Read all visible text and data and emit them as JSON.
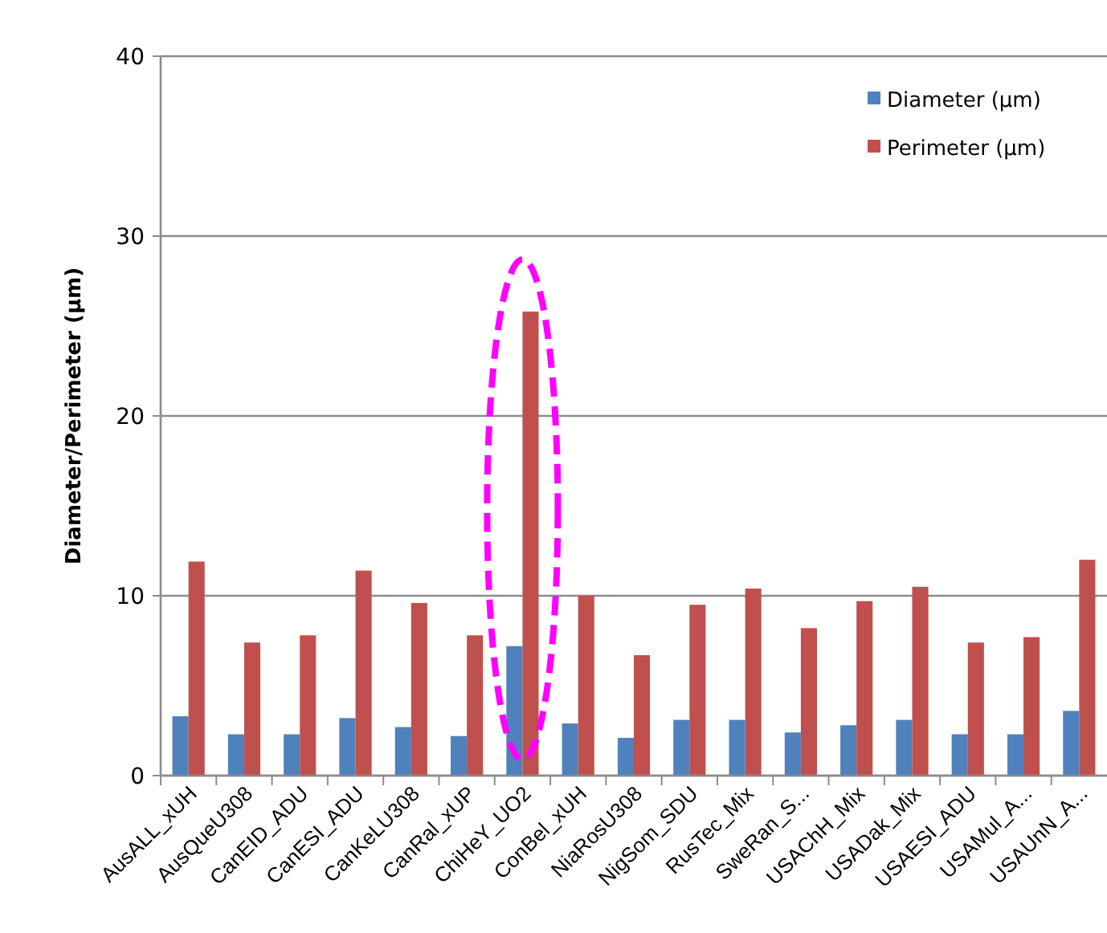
{
  "chart_data": {
    "type": "bar",
    "ylabel": "Diameter/Perimeter (µm)",
    "categories": [
      "AusALL_xUH",
      "AusQueU308",
      "CanEID_ADU",
      "CanESI_ADU",
      "CanKeLU308",
      "CanRal_xUP",
      "ChiHeY_UO2",
      "ConBel_xUH",
      "NiaRosU308",
      "NigSom_SDU",
      "RusTec_Mix",
      "SweRan_S...",
      "USAChH_Mix",
      "USADak_Mix",
      "USAESI_ADU",
      "USAMul_A...",
      "USAUnN_A..."
    ],
    "series": [
      {
        "name": "Diameter (µm)",
        "color": "#4f81bd",
        "values": [
          3.3,
          2.3,
          2.3,
          3.2,
          2.7,
          2.2,
          7.2,
          2.9,
          2.1,
          3.1,
          3.1,
          2.4,
          2.8,
          3.1,
          2.3,
          2.3,
          3.6
        ]
      },
      {
        "name": "Perimeter (µm)",
        "color": "#c0504d",
        "values": [
          11.9,
          7.4,
          7.8,
          11.4,
          9.6,
          7.8,
          25.8,
          10.0,
          6.7,
          9.5,
          10.4,
          8.2,
          9.7,
          10.5,
          7.4,
          7.7,
          12.0
        ]
      }
    ],
    "ylim": [
      0,
      40
    ],
    "yticks": [
      0,
      10,
      20,
      30,
      40
    ],
    "grid": "y",
    "legend": "top right"
  }
}
